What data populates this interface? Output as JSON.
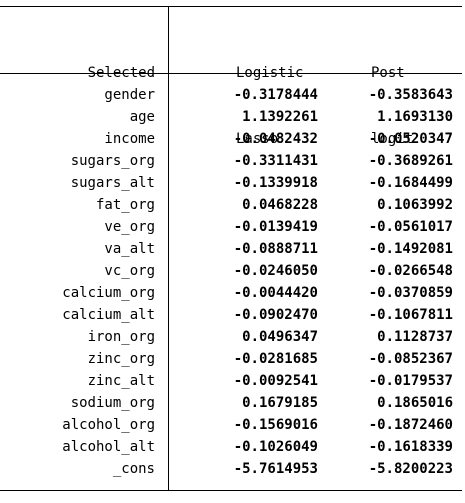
{
  "header": {
    "selected": "Selected",
    "col1_line1": "Logistic",
    "col1_line2": "Lasso",
    "col2_line1": "Post",
    "col2_line2": "logit"
  },
  "rows": [
    {
      "label": "gender",
      "lasso": "-0.3178444",
      "post": "-0.3583643"
    },
    {
      "label": "age",
      "lasso": "1.1392261",
      "post": "1.1693130"
    },
    {
      "label": "income",
      "lasso": "-0.0482432",
      "post": "-0.0520347"
    },
    {
      "label": "sugars_org",
      "lasso": "-0.3311431",
      "post": "-0.3689261"
    },
    {
      "label": "sugars_alt",
      "lasso": "-0.1339918",
      "post": "-0.1684499"
    },
    {
      "label": "fat_org",
      "lasso": "0.0468228",
      "post": "0.1063992"
    },
    {
      "label": "ve_org",
      "lasso": "-0.0139419",
      "post": "-0.0561017"
    },
    {
      "label": "va_alt",
      "lasso": "-0.0888711",
      "post": "-0.1492081"
    },
    {
      "label": "vc_org",
      "lasso": "-0.0246050",
      "post": "-0.0266548"
    },
    {
      "label": "calcium_org",
      "lasso": "-0.0044420",
      "post": "-0.0370859"
    },
    {
      "label": "calcium_alt",
      "lasso": "-0.0902470",
      "post": "-0.1067811"
    },
    {
      "label": "iron_org",
      "lasso": "0.0496347",
      "post": "0.1128737"
    },
    {
      "label": "zinc_org",
      "lasso": "-0.0281685",
      "post": "-0.0852367"
    },
    {
      "label": "zinc_alt",
      "lasso": "-0.0092541",
      "post": "-0.0179537"
    },
    {
      "label": "sodium_org",
      "lasso": "0.1679185",
      "post": "0.1865016"
    },
    {
      "label": "alcohol_org",
      "lasso": "-0.1569016",
      "post": "-0.1872460"
    },
    {
      "label": "alcohol_alt",
      "lasso": "-0.1026049",
      "post": "-0.1618339"
    },
    {
      "label": "_cons",
      "lasso": "-5.7614953",
      "post": "-5.8200223"
    }
  ]
}
